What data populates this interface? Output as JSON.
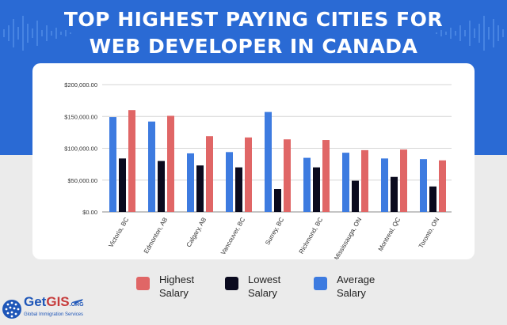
{
  "title_line1": "TOP HIGHEST PAYING CITIES FOR",
  "title_line2": "WEB DEVELOPER IN CANADA",
  "legend": [
    {
      "label": "Highest Salary",
      "color": "#e06666"
    },
    {
      "label": "Lowest Salary",
      "color": "#0a0a1e"
    },
    {
      "label": "Average Salary",
      "color": "#3d7be0"
    }
  ],
  "logo": {
    "name_part1": "Get",
    "name_part2": "GIS",
    "tld": ".ORG",
    "tagline": "Global Immigration Services"
  },
  "colors": {
    "background_top": "#2a6ad4",
    "background_bottom": "#ebebeb",
    "brand": "#1e56b8"
  },
  "chart_data": {
    "type": "bar",
    "categories": [
      "Victoria, BC",
      "Edmonton, AB",
      "Calgary, AB",
      "Vancouver, BC",
      "Surrey, BC",
      "Richmond, BC",
      "Mississauga, ON",
      "Montreal, QC",
      "Toronto, ON"
    ],
    "series": [
      {
        "name": "Average Salary",
        "color": "#3d7be0",
        "values": [
          149000,
          142000,
          92000,
          94000,
          157000,
          85000,
          93000,
          84000,
          83000
        ]
      },
      {
        "name": "Lowest Salary",
        "color": "#0a0a1e",
        "values": [
          84000,
          80000,
          73000,
          70000,
          36000,
          70000,
          49000,
          55000,
          40000
        ]
      },
      {
        "name": "Highest Salary",
        "color": "#e06666",
        "values": [
          160000,
          151000,
          119000,
          117000,
          114000,
          113000,
          97000,
          98000,
          81000
        ]
      }
    ],
    "yticks": [
      "$0.00",
      "$50,000.00",
      "$100,000.00",
      "$150,000.00",
      "$200,000.00"
    ],
    "ylim": [
      0,
      200000
    ],
    "grid": true,
    "legend_position": "bottom"
  }
}
